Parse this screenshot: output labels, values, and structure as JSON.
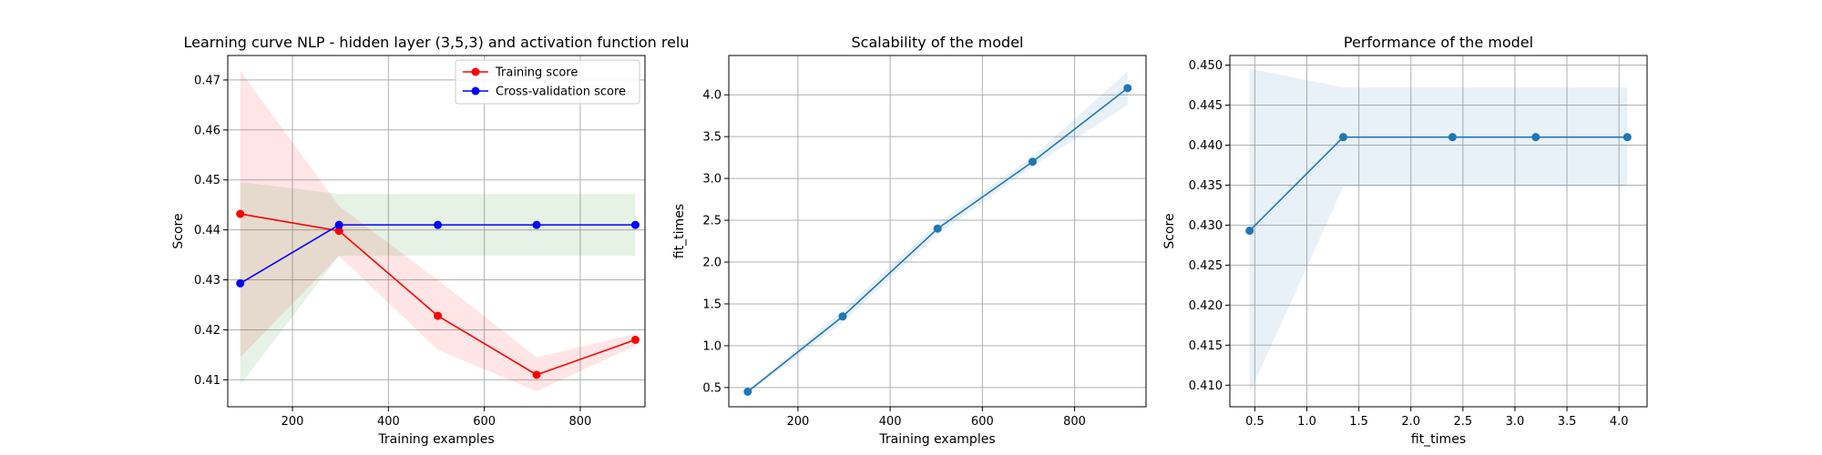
{
  "chart_data": [
    {
      "type": "line",
      "title": "Learning curve NLP - hidden layer (3,5,3) and activation function relu",
      "xlabel": "Training examples",
      "ylabel": "Score",
      "xlim": [
        65,
        935
      ],
      "ylim": [
        0.4046,
        0.4749
      ],
      "xticks": [
        200,
        400,
        600,
        800
      ],
      "yticks": [
        0.41,
        0.42,
        0.43,
        0.44,
        0.45,
        0.46,
        0.47
      ],
      "ytick_decimals": 2,
      "grid": true,
      "legend": {
        "position": "upper right",
        "entries": [
          "Training score",
          "Cross-validation score"
        ]
      },
      "x": [
        91,
        297,
        503,
        709,
        915
      ],
      "series": [
        {
          "name": "Training score",
          "color": "#ff0000",
          "values": [
            0.4432,
            0.4398,
            0.4228,
            0.411,
            0.418
          ],
          "band_upper": [
            0.4718,
            0.4448,
            0.43,
            0.4145,
            0.4192
          ],
          "band_lower": [
            0.4145,
            0.4348,
            0.416,
            0.4077,
            0.4168
          ],
          "band_color": "#ff0000"
        },
        {
          "name": "Cross-validation score",
          "color": "#0000ff",
          "values": [
            0.4293,
            0.441,
            0.441,
            0.441,
            0.441
          ],
          "band_upper": [
            0.4496,
            0.4472,
            0.4472,
            0.4472,
            0.4472
          ],
          "band_lower": [
            0.409,
            0.4348,
            0.4348,
            0.4348,
            0.4348
          ],
          "band_color": "#008000"
        }
      ]
    },
    {
      "type": "line",
      "title": "Scalability of the model",
      "xlabel": "Training examples",
      "ylabel": "fit_times",
      "xlim": [
        50,
        955
      ],
      "ylim": [
        0.27,
        4.47
      ],
      "xticks": [
        200,
        400,
        600,
        800
      ],
      "yticks": [
        0.5,
        1.0,
        1.5,
        2.0,
        2.5,
        3.0,
        3.5,
        4.0
      ],
      "ytick_decimals": 1,
      "grid": true,
      "x": [
        91,
        297,
        503,
        709,
        915
      ],
      "series": [
        {
          "name": "",
          "color": "#1f77b4",
          "values": [
            0.45,
            1.35,
            2.4,
            3.2,
            4.08
          ],
          "band_upper": [
            0.47,
            1.42,
            2.47,
            3.26,
            4.28
          ],
          "band_lower": [
            0.43,
            1.28,
            2.33,
            3.14,
            3.88
          ],
          "band_color": "#1f77b4"
        }
      ]
    },
    {
      "type": "line",
      "title": "Performance of the model",
      "xlabel": "fit_times",
      "ylabel": "Score",
      "xlim": [
        0.26,
        4.27
      ],
      "ylim": [
        0.4073,
        0.4512
      ],
      "xticks": [
        0.5,
        1.0,
        1.5,
        2.0,
        2.5,
        3.0,
        3.5,
        4.0
      ],
      "xtick_decimals": 1,
      "yticks": [
        0.41,
        0.415,
        0.42,
        0.425,
        0.43,
        0.435,
        0.44,
        0.445,
        0.45
      ],
      "ytick_decimals": 3,
      "grid": true,
      "x": [
        0.45,
        1.35,
        2.4,
        3.2,
        4.08
      ],
      "series": [
        {
          "name": "",
          "color": "#1f77b4",
          "values": [
            0.4293,
            0.441,
            0.441,
            0.441,
            0.441
          ],
          "band_upper": [
            0.4496,
            0.4472,
            0.4472,
            0.4472,
            0.4472
          ],
          "band_lower": [
            0.409,
            0.4348,
            0.4348,
            0.4348,
            0.4348
          ],
          "band_color": "#1f77b4"
        }
      ]
    }
  ]
}
